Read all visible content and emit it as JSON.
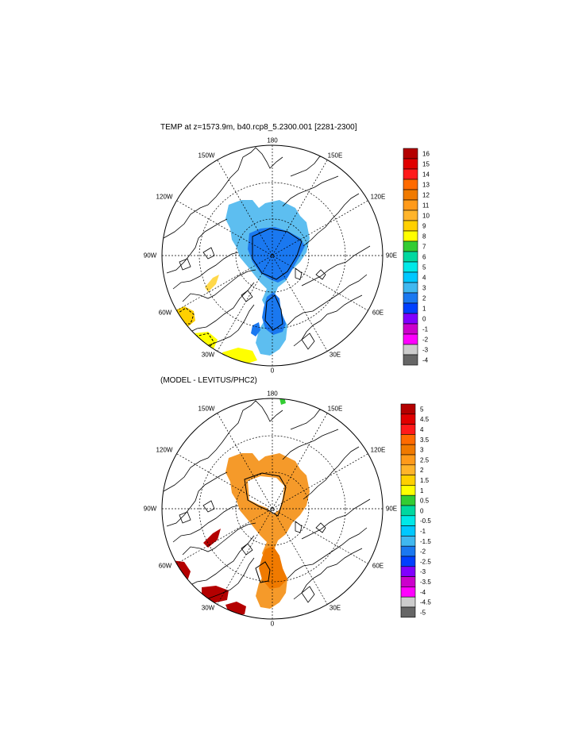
{
  "panels": [
    {
      "title": "TEMP at z=1573.9m, b40.rcp8_5.2300.001 [2281-2300]",
      "lon_labels": {
        "top": "180",
        "bottom": "0",
        "left": "90W",
        "right": "90E",
        "nw150": "150W",
        "ne150": "150E",
        "nw120": "120W",
        "ne120": "120E",
        "sw60": "60W",
        "se60": "60E",
        "sw30": "30W",
        "se30": "30E"
      },
      "colorbar": {
        "labels": [
          "16",
          "15",
          "14",
          "13",
          "12",
          "11",
          "10",
          "9",
          "8",
          "7",
          "6",
          "5",
          "4",
          "3",
          "2",
          "1",
          "0",
          "-1",
          "-2",
          "-3",
          "-4"
        ],
        "colors": [
          "#b40000",
          "#e00000",
          "#ff1a1a",
          "#ff6a00",
          "#f07a00",
          "#ff9a1a",
          "#ffb42a",
          "#ffd000",
          "#ffff00",
          "#33cc33",
          "#00d8a0",
          "#00e8e8",
          "#00c8ff",
          "#40b8f0",
          "#1a78f0",
          "#0040ff",
          "#8000ff",
          "#cc00cc",
          "#ff00ff",
          "#cccccc",
          "#666666"
        ]
      }
    },
    {
      "title": "(MODEL - LEVITUS/PHC2)",
      "lon_labels": {
        "top": "180",
        "bottom": "0",
        "left": "90W",
        "right": "90E",
        "nw150": "150W",
        "ne150": "150E",
        "nw120": "120W",
        "ne120": "120E",
        "sw60": "60W",
        "se60": "60E",
        "sw30": "30W",
        "se30": "30E"
      },
      "colorbar": {
        "labels": [
          "5",
          "4.5",
          "4",
          "3.5",
          "3",
          "2.5",
          "2",
          "1.5",
          "1",
          "0.5",
          "0",
          "-0.5",
          "-1",
          "-1.5",
          "-2",
          "-2.5",
          "-3",
          "-3.5",
          "-4",
          "-4.5",
          "-5"
        ],
        "colors": [
          "#b40000",
          "#e00000",
          "#ff1a1a",
          "#ff6a00",
          "#f07a00",
          "#ff9a1a",
          "#ffb42a",
          "#ffd000",
          "#ffff00",
          "#33cc33",
          "#00d8a0",
          "#00e8e8",
          "#00c8ff",
          "#40b8f0",
          "#1a78f0",
          "#0040ff",
          "#8000ff",
          "#cc00cc",
          "#ff00ff",
          "#cccccc",
          "#666666"
        ]
      }
    }
  ]
}
